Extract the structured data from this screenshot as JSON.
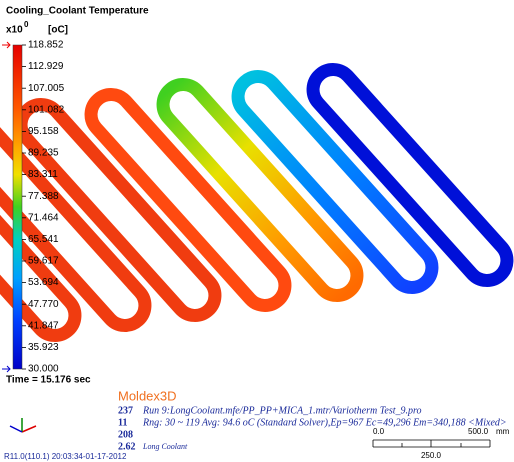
{
  "legend": {
    "title": "Cooling_Coolant Temperature",
    "multiplier_base": "x10",
    "multiplier_exp": "0",
    "unit": "[oC]",
    "labels": [
      "118.852",
      "112.929",
      "107.005",
      "101.082",
      "95.158",
      "89.235",
      "83.311",
      "77.388",
      "71.464",
      "65.541",
      "59.617",
      "53.694",
      "47.770",
      "41.847",
      "35.923",
      "30.000"
    ],
    "time": "Time = 15.176 sec"
  },
  "footer": {
    "brand": "Moldex3D",
    "numbers": [
      "237",
      "11",
      "208",
      "2.62"
    ],
    "run": "Run 9:LongCoolant.mfe/PP_PP+MICA_1.mtr/Variotherm Test_9.pro",
    "range": "Rng: 30 ~ 119   Avg: 94.6 oC (Standard Solver),Ep=967 Ec=49,296 Em=340,188  <Mixed>",
    "coolant": "Long Coolant",
    "version": "R11.0(110.1) 20:03:34-01-17-2012"
  },
  "scale_bar": {
    "start": "0.0",
    "end": "500.0",
    "unit": "mm",
    "mid": "250.0"
  }
}
